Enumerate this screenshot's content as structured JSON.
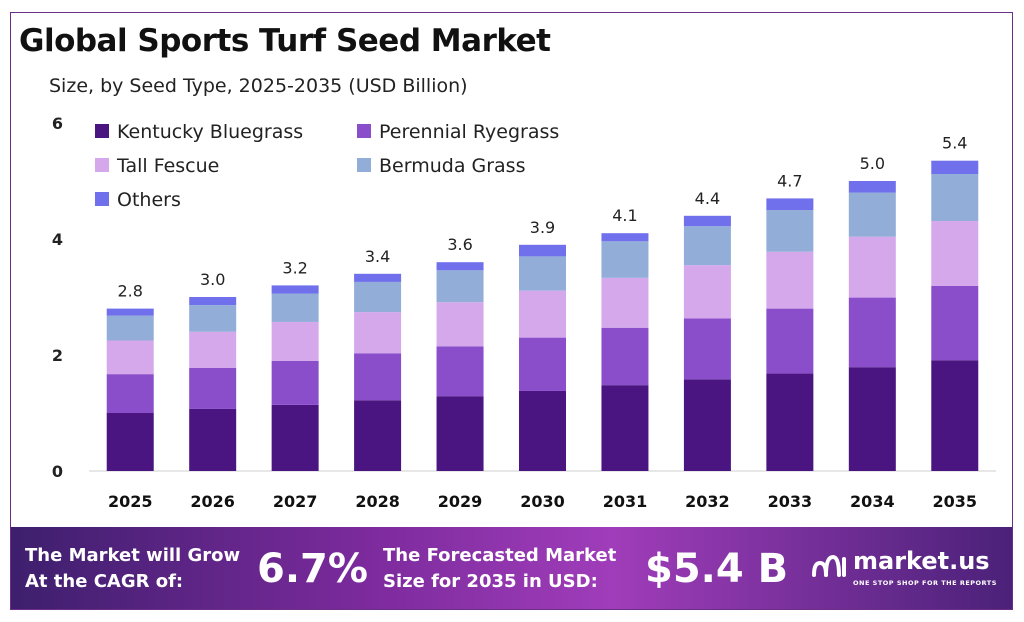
{
  "title": "Global Sports Turf Seed Market",
  "subtitle": "Size, by Seed Type, 2025-2035 (USD Billion)",
  "colors": {
    "kentucky": "#4a1580",
    "perennial": "#8a4ecb",
    "tall_fescue": "#d5a8ec",
    "bermuda": "#92aed8",
    "others": "#7070ec"
  },
  "chart_data": {
    "type": "bar",
    "stacked": true,
    "title": "Global Sports Turf Seed Market",
    "subtitle": "Size, by Seed Type, 2025-2035 (USD Billion)",
    "xlabel": "",
    "ylabel": "",
    "ylim": [
      0,
      6
    ],
    "yticks": [
      0,
      2,
      4,
      6
    ],
    "grid": false,
    "legend_position": "top-left",
    "categories": [
      "2025",
      "2026",
      "2027",
      "2028",
      "2029",
      "2030",
      "2031",
      "2032",
      "2033",
      "2034",
      "2035"
    ],
    "totals": [
      "2.8",
      "3.0",
      "3.2",
      "3.4",
      "3.6",
      "3.9",
      "4.1",
      "4.4",
      "4.7",
      "5.0",
      "5.4"
    ],
    "series": [
      {
        "name": "Kentucky Bluegrass",
        "color_key": "kentucky",
        "values": [
          1.0,
          1.07,
          1.14,
          1.22,
          1.29,
          1.38,
          1.48,
          1.58,
          1.68,
          1.79,
          1.91
        ]
      },
      {
        "name": "Perennial Ryegrass",
        "color_key": "perennial",
        "values": [
          0.67,
          0.71,
          0.76,
          0.81,
          0.86,
          0.92,
          0.99,
          1.05,
          1.12,
          1.2,
          1.28
        ]
      },
      {
        "name": "Tall Fescue",
        "color_key": "tall_fescue",
        "values": [
          0.58,
          0.62,
          0.67,
          0.71,
          0.76,
          0.81,
          0.86,
          0.92,
          0.98,
          1.05,
          1.12
        ]
      },
      {
        "name": "Bermuda Grass",
        "color_key": "bermuda",
        "values": [
          0.43,
          0.46,
          0.49,
          0.52,
          0.55,
          0.59,
          0.63,
          0.67,
          0.72,
          0.76,
          0.81
        ]
      },
      {
        "name": "Others",
        "color_key": "others",
        "values": [
          0.12,
          0.14,
          0.14,
          0.14,
          0.14,
          0.2,
          0.14,
          0.18,
          0.2,
          0.2,
          0.23
        ]
      }
    ]
  },
  "footer": {
    "cagr_label": "The Market will Grow\nAt the CAGR of:",
    "cagr_value": "6.7%",
    "forecast_label": "The Forecasted Market\nSize for 2035 in USD:",
    "forecast_value": "$5.4 B",
    "brand_name": "market.us",
    "brand_tagline": "ONE STOP SHOP FOR THE REPORTS"
  }
}
